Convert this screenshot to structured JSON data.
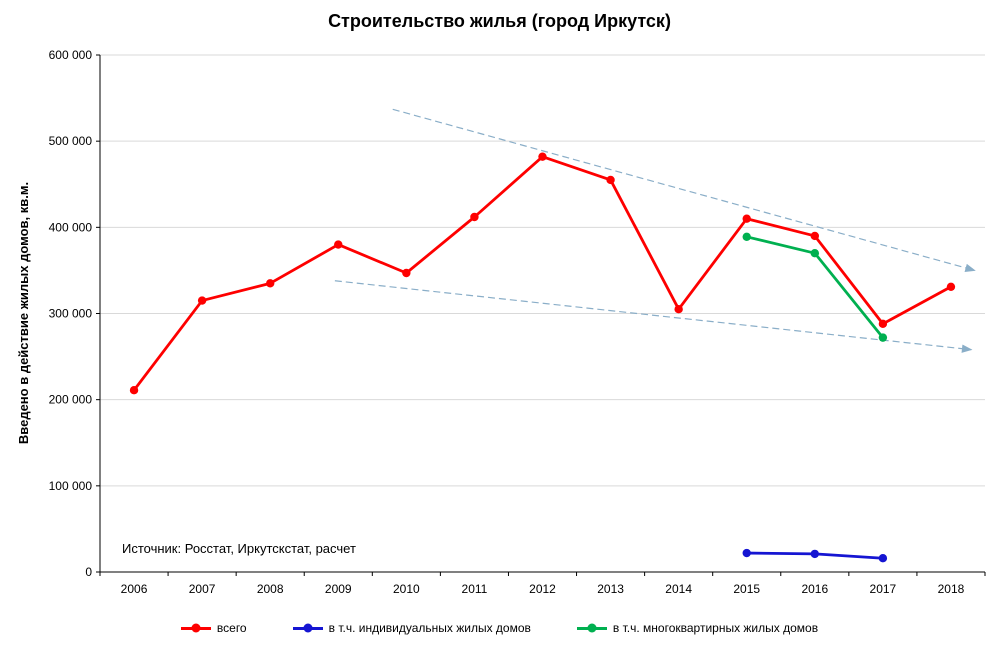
{
  "chart_data": {
    "type": "line",
    "title": "Строительство жилья (город Иркутск)",
    "ylabel": "Введено в действие жилых домов, кв.м.",
    "xlabel": "",
    "x": [
      2006,
      2007,
      2008,
      2009,
      2010,
      2011,
      2012,
      2013,
      2014,
      2015,
      2016,
      2017,
      2018
    ],
    "ylim": [
      0,
      600000
    ],
    "ytick_step": 100000,
    "grid": true,
    "gridline_color": "#d9d9d9",
    "legend_position": "bottom",
    "series": [
      {
        "name": "всего",
        "color": "#fe0000",
        "x": [
          2006,
          2007,
          2008,
          2009,
          2010,
          2011,
          2012,
          2013,
          2014,
          2015,
          2016,
          2017,
          2018
        ],
        "values": [
          211000,
          315000,
          335000,
          380000,
          347000,
          412000,
          482000,
          455000,
          305000,
          410000,
          390000,
          288000,
          331000
        ]
      },
      {
        "name": "в т.ч.  индивидуальных жилых домов",
        "color": "#1515d2",
        "x": [
          2015,
          2016,
          2017
        ],
        "values": [
          22000,
          21000,
          16000
        ]
      },
      {
        "name": "в т.ч.  многоквартирных жилых домов",
        "color": "#00b050",
        "x": [
          2015,
          2016,
          2017
        ],
        "values": [
          389000,
          370000,
          272000
        ]
      }
    ],
    "trend_lines": [
      {
        "from_x": 2009.8,
        "from_y": 537000,
        "to_x": 2018.35,
        "to_y": 350000,
        "color": "#8aaec8",
        "style": "dashed",
        "arrow": true
      },
      {
        "from_x": 2008.95,
        "from_y": 338000,
        "to_x": 2018.3,
        "to_y": 258000,
        "color": "#8aaec8",
        "style": "dashed",
        "arrow": true
      }
    ],
    "annotation": "Источник: Росстат, Иркутскстат, расчет"
  }
}
